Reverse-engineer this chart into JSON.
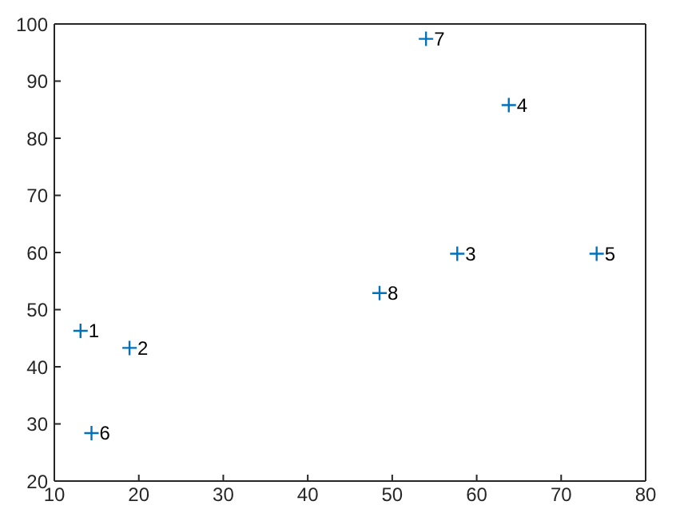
{
  "chart_data": {
    "type": "scatter",
    "x": [
      13.1,
      18.9,
      57.7,
      63.8,
      74.2,
      14.4,
      54.0,
      48.5
    ],
    "values": [
      46.3,
      43.3,
      59.8,
      85.8,
      59.8,
      28.4,
      97.4,
      52.9
    ],
    "color": "#0072bd",
    "marker": "cross",
    "xlim": [
      10,
      80
    ],
    "xticks": [
      10,
      20,
      30,
      40,
      50,
      60,
      70,
      80
    ],
    "ylim": [
      20,
      100
    ],
    "yticks": [
      20,
      30,
      40,
      50,
      60,
      70,
      80,
      90,
      100
    ],
    "grid": false,
    "annotations": [
      {
        "text": "1",
        "x": 13.1,
        "y": 46.3
      },
      {
        "text": "2",
        "x": 18.9,
        "y": 43.3
      },
      {
        "text": "3",
        "x": 57.7,
        "y": 59.8
      },
      {
        "text": "4",
        "x": 63.8,
        "y": 85.8
      },
      {
        "text": "5",
        "x": 74.2,
        "y": 59.8
      },
      {
        "text": "6",
        "x": 14.4,
        "y": 28.4
      },
      {
        "text": "7",
        "x": 54.0,
        "y": 97.4
      },
      {
        "text": "8",
        "x": 48.5,
        "y": 52.9
      }
    ]
  }
}
